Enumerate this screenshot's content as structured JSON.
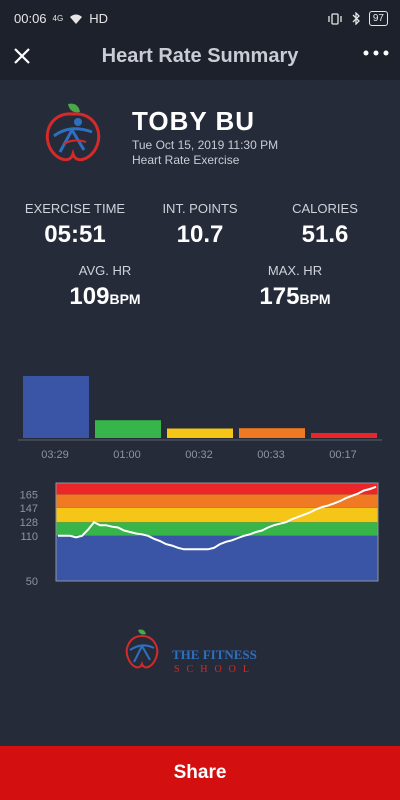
{
  "status": {
    "time": "00:06",
    "signal": "4G",
    "network": "HD",
    "battery": "97"
  },
  "header": {
    "title": "Heart Rate Summary"
  },
  "profile": {
    "name": "TOBY BU",
    "datetime": "Tue Oct 15, 2019 11:30 PM",
    "exercise_type": "Heart Rate Exercise"
  },
  "stats": {
    "exercise_time_label": "EXERCISE TIME",
    "exercise_time_value": "05:51",
    "int_points_label": "INT. POINTS",
    "int_points_value": "10.7",
    "calories_label": "CALORIES",
    "calories_value": "51.6",
    "avg_hr_label": "AVG. HR",
    "avg_hr_value": "109",
    "max_hr_label": "MAX. HR",
    "max_hr_value": "175",
    "bpm_unit": "BPM"
  },
  "colors": {
    "zone1": "#3b55a6",
    "zone2": "#37b44a",
    "zone3": "#f5c517",
    "zone4": "#f07a23",
    "zone5": "#ea2629",
    "background": "#262b39",
    "share": "#d40f0f"
  },
  "chart_data": [
    {
      "type": "bar",
      "categories": [
        "03:29",
        "01:00",
        "00:32",
        "00:33",
        "00:17"
      ],
      "values": [
        209,
        60,
        32,
        33,
        17
      ],
      "colors": [
        "#3b55a6",
        "#37b44a",
        "#f5c517",
        "#f07a23",
        "#ea2629"
      ]
    },
    {
      "type": "line",
      "y_ticks": [
        "165",
        "147",
        "128",
        "110",
        "50"
      ],
      "ylim": [
        50,
        180
      ],
      "zones": [
        {
          "from": 50,
          "to": 110,
          "color": "#3b55a6"
        },
        {
          "from": 110,
          "to": 128,
          "color": "#37b44a"
        },
        {
          "from": 128,
          "to": 147,
          "color": "#f5c517"
        },
        {
          "from": 147,
          "to": 165,
          "color": "#f07a23"
        },
        {
          "from": 165,
          "to": 180,
          "color": "#ea2629"
        }
      ],
      "series": [
        {
          "values": [
            110,
            110,
            110,
            108,
            110,
            118,
            128,
            124,
            124,
            122,
            121,
            117,
            115,
            113,
            112,
            110,
            106,
            103,
            99,
            97,
            94,
            92,
            92,
            92,
            92,
            92,
            94,
            99,
            102,
            104,
            107,
            110,
            112,
            115,
            117,
            121,
            124,
            126,
            128,
            132,
            135,
            138,
            141,
            145,
            148,
            150,
            153,
            156,
            160,
            163,
            166,
            170,
            172,
            175
          ]
        }
      ]
    }
  ],
  "logo": {
    "line1": "THE FITNESS",
    "line2": "SCHOOL"
  },
  "share": {
    "label": "Share"
  }
}
